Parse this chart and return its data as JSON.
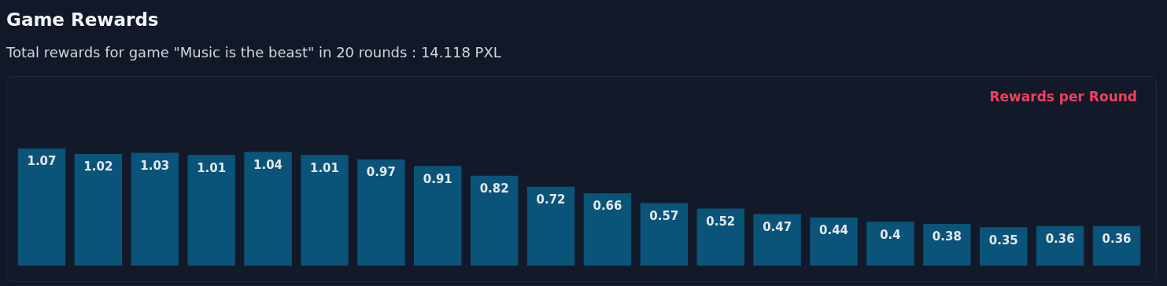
{
  "chart_data": {
    "type": "bar",
    "title": "Game Rewards",
    "subtitle": "Total rewards for game \"Music is the beast\" in 20 rounds : 14.118 PXL",
    "categories": [
      null,
      null,
      null,
      null,
      null,
      null,
      null,
      null,
      null,
      null,
      null,
      null,
      null,
      null,
      null,
      null,
      null,
      null,
      null,
      null
    ],
    "series": [
      {
        "name": "Rewards per Round",
        "color": "#0b5479",
        "values": [
          1.07,
          1.02,
          1.03,
          1.01,
          1.04,
          1.01,
          0.97,
          0.91,
          0.82,
          0.72,
          0.66,
          0.57,
          0.52,
          0.47,
          0.44,
          0.4,
          0.38,
          0.35,
          0.36,
          0.36
        ]
      }
    ],
    "data_labels": true,
    "legend": "top right"
  }
}
